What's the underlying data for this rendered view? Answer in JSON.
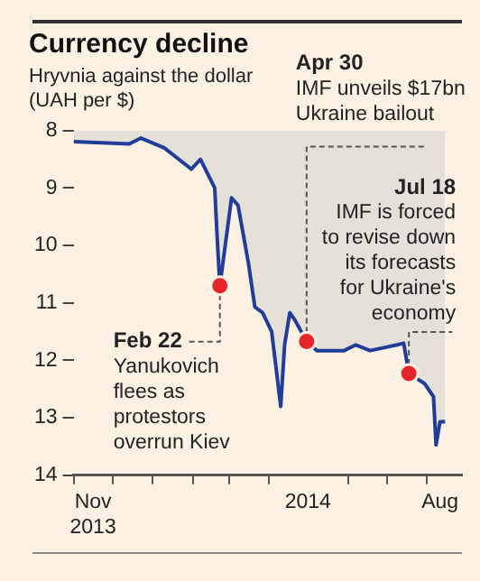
{
  "chart_data": {
    "type": "area",
    "title": "Currency decline",
    "subtitle": "Hryvnia against the dollar\n(UAH per $)",
    "x": [
      "2013-11-01",
      "2013-12-14",
      "2013-12-23",
      "2014-01-10",
      "2014-01-31",
      "2014-02-07",
      "2014-02-18",
      "2014-02-20",
      "2014-02-22",
      "2014-03-03",
      "2014-03-08",
      "2014-03-16",
      "2014-03-21",
      "2014-03-27",
      "2014-04-03",
      "2014-04-10",
      "2014-04-13",
      "2014-04-17",
      "2014-04-21",
      "2014-04-30",
      "2014-05-08",
      "2014-05-29",
      "2014-06-07",
      "2014-06-18",
      "2014-07-09",
      "2014-07-14",
      "2014-07-18",
      "2014-07-30",
      "2014-08-06",
      "2014-08-08",
      "2014-08-11",
      "2014-08-15"
    ],
    "series": [
      {
        "color": "#1f3d99",
        "values": [
          8.19,
          8.23,
          8.13,
          8.3,
          8.67,
          8.5,
          9.0,
          9.9,
          10.7,
          9.17,
          9.3,
          10.3,
          11.07,
          11.17,
          11.5,
          12.8,
          11.73,
          11.17,
          11.3,
          11.67,
          11.83,
          11.83,
          11.73,
          11.83,
          11.73,
          11.7,
          12.23,
          12.4,
          12.63,
          13.47,
          13.07,
          13.07
        ]
      }
    ],
    "xlim": [
      "2013-11-01",
      "2014-08-28"
    ],
    "xticks": [
      {
        "value": "2013-11-01",
        "label": null
      },
      {
        "value": "2013-11-16",
        "label": "Nov 2013"
      },
      {
        "value": "2013-12-01",
        "label": null
      },
      {
        "value": "2014-01-01",
        "label": null
      },
      {
        "value": "2014-02-01",
        "label": null
      },
      {
        "value": "2014-03-01",
        "label": null
      },
      {
        "value": "2014-04-01",
        "label": null
      },
      {
        "value": "2014-05-01",
        "label": "2014"
      },
      {
        "value": "2014-06-01",
        "label": null
      },
      {
        "value": "2014-07-01",
        "label": null
      },
      {
        "value": "2014-08-01",
        "label": null
      },
      {
        "value": "2014-08-11",
        "label": "Aug"
      }
    ],
    "ylim": [
      14,
      8
    ],
    "yticks": [
      8,
      9,
      10,
      11,
      12,
      13,
      14
    ],
    "marker": "none",
    "legend": false,
    "annotations": [
      {
        "text": "Feb 22\nYanukovich\nflees as\nprotestors\noverrun Kiev",
        "x": "2014-02-22",
        "y": 10.7
      },
      {
        "text": "Apr 30\nIMF unveils $17bn\nUkraine bailout",
        "x": "2014-04-30",
        "y": 11.67
      },
      {
        "text": "Jul 18\nIMF is forced\nto revise down\nits forecasts\nfor Ukraine's\neconomy",
        "x": "2014-07-18",
        "y": 12.23
      }
    ]
  }
}
